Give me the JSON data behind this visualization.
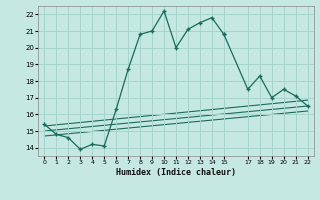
{
  "background_color": "#c5e8e2",
  "grid_color": "#a8d4ce",
  "line_color": "#1a6b5a",
  "xlabel": "Humidex (Indice chaleur)",
  "xlim": [
    -0.5,
    22.5
  ],
  "ylim": [
    13.5,
    22.5
  ],
  "xticks": [
    0,
    1,
    2,
    3,
    4,
    5,
    6,
    7,
    8,
    9,
    10,
    11,
    12,
    13,
    14,
    15,
    17,
    18,
    19,
    20,
    21,
    22
  ],
  "yticks": [
    14,
    15,
    16,
    17,
    18,
    19,
    20,
    21,
    22
  ],
  "main_x": [
    0,
    1,
    2,
    3,
    4,
    5,
    6,
    7,
    8,
    9,
    10,
    11,
    12,
    13,
    14,
    15
  ],
  "main_y": [
    15.4,
    14.8,
    14.6,
    13.9,
    14.2,
    14.1,
    16.3,
    18.7,
    20.8,
    21.0,
    22.2,
    20.0,
    21.1,
    21.5,
    21.8,
    20.8
  ],
  "right_x": [
    15,
    17,
    18,
    19,
    20,
    21,
    22
  ],
  "right_y": [
    20.8,
    17.5,
    18.3,
    17.0,
    17.5,
    17.1,
    16.5
  ],
  "trend1_x": [
    0,
    22
  ],
  "trend1_y": [
    14.7,
    16.2
  ],
  "trend2_x": [
    0,
    22
  ],
  "trend2_y": [
    15.0,
    16.5
  ],
  "trend3_x": [
    0,
    22
  ],
  "trend3_y": [
    15.3,
    16.85
  ]
}
